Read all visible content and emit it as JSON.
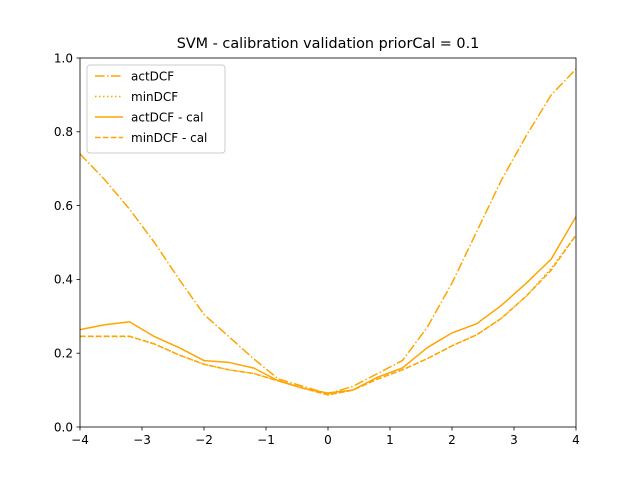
{
  "chart_data": {
    "type": "line",
    "title": "SVM - calibration validation priorCal = 0.1",
    "xlabel": "",
    "ylabel": "",
    "xlim": [
      -4,
      4
    ],
    "ylim": [
      0.0,
      1.0
    ],
    "x_ticks": [
      -4,
      -3,
      -2,
      -1,
      0,
      1,
      2,
      3,
      4
    ],
    "x_tick_labels": [
      "−4",
      "−3",
      "−2",
      "−1",
      "0",
      "1",
      "2",
      "3",
      "4"
    ],
    "y_ticks": [
      0.0,
      0.2,
      0.4,
      0.6,
      0.8,
      1.0
    ],
    "y_tick_labels": [
      "0.0",
      "0.2",
      "0.4",
      "0.6",
      "0.8",
      "1.0"
    ],
    "grid": false,
    "legend_position": "top-left",
    "color": "#FFA500",
    "x": [
      -4.0,
      -3.6,
      -3.2,
      -2.8,
      -2.4,
      -2.0,
      -1.6,
      -1.2,
      -0.8,
      -0.4,
      0.0,
      0.4,
      0.8,
      1.2,
      1.6,
      2.0,
      2.4,
      2.8,
      3.2,
      3.6,
      4.0
    ],
    "series": [
      {
        "name": "actDCF",
        "style": "dashdot",
        "values": [
          0.74,
          0.67,
          0.59,
          0.5,
          0.4,
          0.305,
          0.245,
          0.185,
          0.13,
          0.11,
          0.09,
          0.11,
          0.145,
          0.18,
          0.27,
          0.39,
          0.53,
          0.67,
          0.79,
          0.9,
          0.97
        ]
      },
      {
        "name": "minDCF",
        "style": "dotted",
        "values": [
          0.245,
          0.245,
          0.245,
          0.225,
          0.195,
          0.17,
          0.155,
          0.145,
          0.125,
          0.105,
          0.087,
          0.1,
          0.13,
          0.155,
          0.185,
          0.22,
          0.25,
          0.295,
          0.355,
          0.43,
          0.52
        ]
      },
      {
        "name": "actDCF - cal",
        "style": "solid",
        "values": [
          0.264,
          0.277,
          0.285,
          0.245,
          0.215,
          0.18,
          0.175,
          0.16,
          0.125,
          0.105,
          0.092,
          0.1,
          0.135,
          0.16,
          0.215,
          0.255,
          0.28,
          0.33,
          0.39,
          0.455,
          0.57
        ]
      },
      {
        "name": "minDCF - cal",
        "style": "dashed",
        "values": [
          0.246,
          0.246,
          0.246,
          0.225,
          0.195,
          0.17,
          0.155,
          0.145,
          0.125,
          0.105,
          0.087,
          0.1,
          0.13,
          0.155,
          0.185,
          0.22,
          0.25,
          0.295,
          0.355,
          0.425,
          0.52
        ]
      }
    ]
  }
}
